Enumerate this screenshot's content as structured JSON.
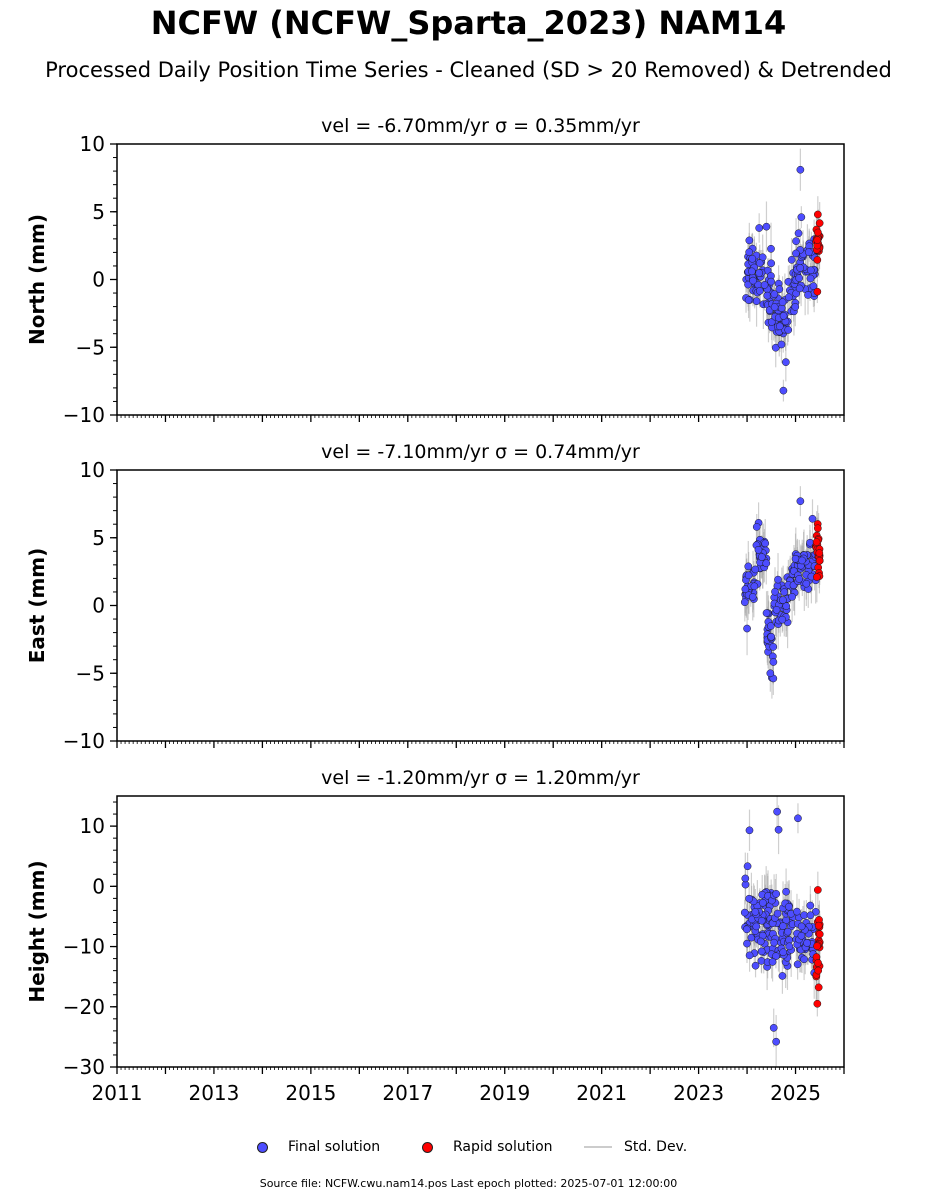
{
  "title": "NCFW (NCFW_Sparta_2023) NAM14",
  "subtitle": "Processed Daily Position Time Series - Cleaned (SD > 20 Removed) & Detrended",
  "legend": {
    "final": "Final solution",
    "rapid": "Rapid solution",
    "std": "Std. Dev."
  },
  "footer": "Source file: NCFW.cwu.nam14.pos  Last epoch plotted: 2025-07-01 12:00:00",
  "colors": {
    "final": "#4d4dff",
    "rapid": "#ff0000",
    "std": "#a8a8a8"
  },
  "chart_data": [
    {
      "type": "scatter",
      "title": "vel = -6.70mm/yr   σ = 0.35mm/yr",
      "ylabel": "North (mm)",
      "xlim": [
        2011,
        2026
      ],
      "ylim": [
        -10,
        10
      ],
      "yticks": [
        -10,
        -5,
        0,
        5,
        10
      ],
      "xticks": [
        2011,
        2013,
        2015,
        2017,
        2019,
        2021,
        2023,
        2025
      ],
      "grid": false,
      "series": [
        {
          "role": "final",
          "segments": [
            {
              "x0": 2023.95,
              "x1": 2024.25,
              "center": 0.3,
              "spread": 1.5,
              "n": 42
            },
            {
              "x0": 2024.25,
              "x1": 2024.5,
              "center": -0.5,
              "spread": 1.6,
              "n": 30
            },
            {
              "x0": 2024.5,
              "x1": 2024.85,
              "center": -2.6,
              "spread": 1.4,
              "n": 45
            },
            {
              "x0": 2024.85,
              "x1": 2025.0,
              "center": -1.2,
              "spread": 1.5,
              "n": 18
            },
            {
              "x0": 2025.0,
              "x1": 2025.42,
              "center": 1.2,
              "spread": 1.4,
              "n": 45
            }
          ],
          "outliers": [
            [
              2025.1,
              8.1
            ],
            [
              2024.75,
              -8.2
            ],
            [
              2024.8,
              -6.1
            ],
            [
              2024.25,
              3.8
            ],
            [
              2024.4,
              3.9
            ],
            [
              2025.12,
              4.6
            ]
          ]
        },
        {
          "role": "rapid",
          "segments": [
            {
              "x0": 2025.42,
              "x1": 2025.5,
              "center": 2.6,
              "spread": 1.0,
              "n": 22
            }
          ],
          "outliers": [
            [
              2025.46,
              4.8
            ],
            [
              2025.45,
              -0.9
            ]
          ]
        }
      ]
    },
    {
      "type": "scatter",
      "title": "vel = -7.10mm/yr   σ = 0.74mm/yr",
      "ylabel": "East (mm)",
      "xlim": [
        2011,
        2026
      ],
      "ylim": [
        -10,
        10
      ],
      "yticks": [
        -10,
        -5,
        0,
        5,
        10
      ],
      "xticks": [
        2011,
        2013,
        2015,
        2017,
        2019,
        2021,
        2023,
        2025
      ],
      "grid": false,
      "series": [
        {
          "role": "final",
          "segments": [
            {
              "x0": 2023.95,
              "x1": 2024.15,
              "center": 1.5,
              "spread": 1.1,
              "n": 28
            },
            {
              "x0": 2024.15,
              "x1": 2024.4,
              "center": 3.5,
              "spread": 1.3,
              "n": 30
            },
            {
              "x0": 2024.4,
              "x1": 2024.55,
              "center": -2.5,
              "spread": 1.5,
              "n": 24
            },
            {
              "x0": 2024.55,
              "x1": 2024.85,
              "center": 0.3,
              "spread": 1.3,
              "n": 36
            },
            {
              "x0": 2024.85,
              "x1": 2025.0,
              "center": 1.8,
              "spread": 1.0,
              "n": 16
            },
            {
              "x0": 2025.0,
              "x1": 2025.42,
              "center": 3.0,
              "spread": 1.1,
              "n": 45
            }
          ],
          "outliers": [
            [
              2025.1,
              7.7
            ],
            [
              2024.0,
              -1.7
            ],
            [
              2024.48,
              -5.0
            ],
            [
              2024.2,
              5.8
            ],
            [
              2025.35,
              6.4
            ]
          ]
        },
        {
          "role": "rapid",
          "segments": [
            {
              "x0": 2025.42,
              "x1": 2025.5,
              "center": 4.0,
              "spread": 1.2,
              "n": 22
            }
          ],
          "outliers": [
            [
              2025.46,
              5.7
            ],
            [
              2025.44,
              2.1
            ]
          ]
        }
      ]
    },
    {
      "type": "scatter",
      "title": "vel = -1.20mm/yr   σ = 1.20mm/yr",
      "ylabel": "Height (mm)",
      "xlim": [
        2011,
        2026
      ],
      "ylim": [
        -30,
        15
      ],
      "yticks": [
        -30,
        -20,
        -10,
        0,
        10
      ],
      "xticks": [
        2011,
        2013,
        2015,
        2017,
        2019,
        2021,
        2023,
        2025
      ],
      "grid": false,
      "series": [
        {
          "role": "final",
          "segments": [
            {
              "x0": 2023.95,
              "x1": 2024.5,
              "center": -6.5,
              "spread": 4.5,
              "n": 80
            },
            {
              "x0": 2024.5,
              "x1": 2024.95,
              "center": -7.0,
              "spread": 4.5,
              "n": 60
            },
            {
              "x0": 2025.0,
              "x1": 2025.42,
              "center": -8.5,
              "spread": 3.5,
              "n": 45
            }
          ],
          "outliers": [
            [
              2024.05,
              9.3
            ],
            [
              2024.62,
              12.4
            ],
            [
              2025.05,
              11.3
            ],
            [
              2024.55,
              -23.5
            ],
            [
              2024.6,
              -25.8
            ],
            [
              2024.65,
              9.4
            ]
          ]
        },
        {
          "role": "rapid",
          "segments": [
            {
              "x0": 2025.42,
              "x1": 2025.5,
              "center": -10.5,
              "spread": 4.0,
              "n": 22
            }
          ],
          "outliers": [
            [
              2025.46,
              -0.6
            ],
            [
              2025.45,
              -19.5
            ]
          ]
        }
      ]
    }
  ]
}
